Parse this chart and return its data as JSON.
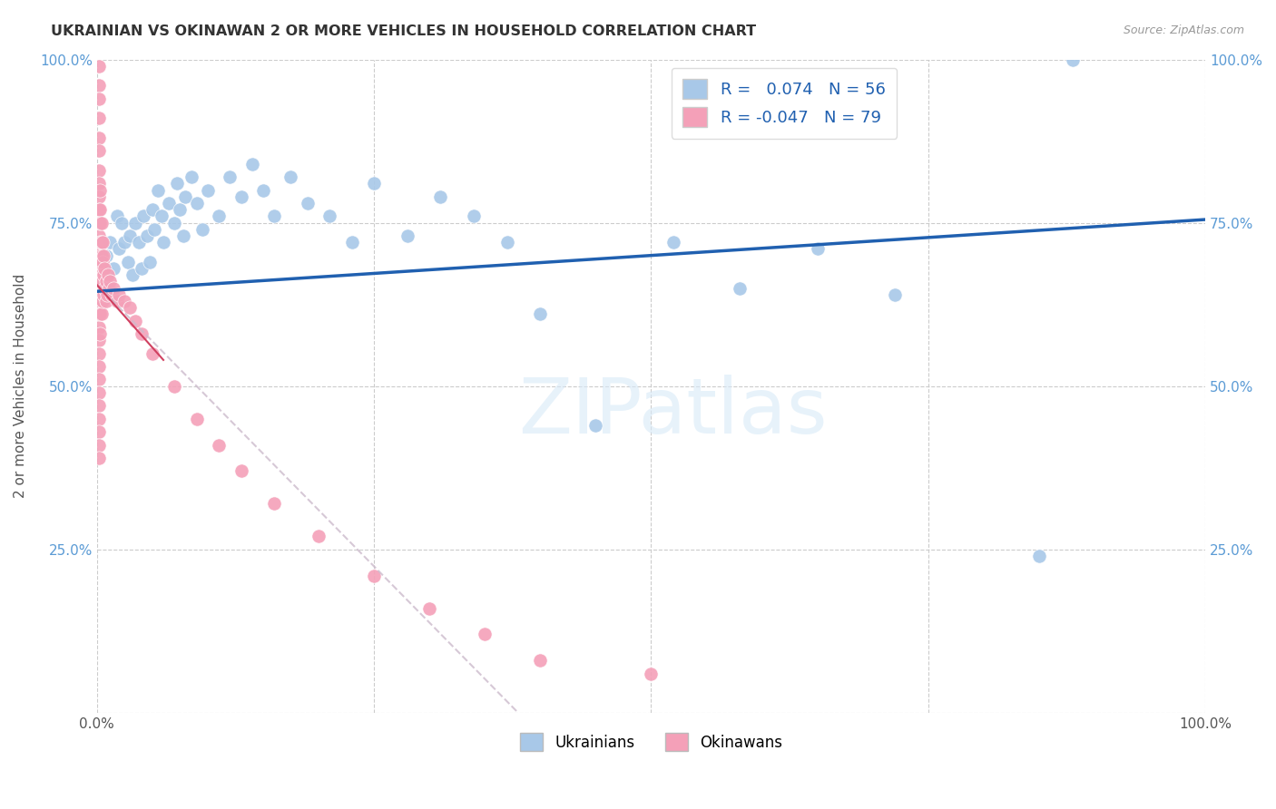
{
  "title": "UKRAINIAN VS OKINAWAN 2 OR MORE VEHICLES IN HOUSEHOLD CORRELATION CHART",
  "source": "Source: ZipAtlas.com",
  "ylabel": "2 or more Vehicles in Household",
  "watermark": "ZIPatlas",
  "legend_labels": [
    "Ukrainians",
    "Okinawans"
  ],
  "r_ukrainian": 0.074,
  "n_ukrainian": 56,
  "r_okinawan": -0.047,
  "n_okinawan": 79,
  "ukrainian_color": "#a8c8e8",
  "okinawan_color": "#f4a0b8",
  "trend_ukrainian_color": "#2060b0",
  "trend_okinawan_color": "#c0b0b8",
  "scatter_size": 120,
  "background_color": "#ffffff",
  "grid_color": "#cccccc",
  "ukrainian_x": [
    0.005,
    0.008,
    0.01,
    0.012,
    0.015,
    0.018,
    0.02,
    0.022,
    0.025,
    0.028,
    0.03,
    0.032,
    0.035,
    0.038,
    0.04,
    0.042,
    0.045,
    0.048,
    0.05,
    0.052,
    0.055,
    0.058,
    0.06,
    0.065,
    0.07,
    0.072,
    0.075,
    0.078,
    0.08,
    0.085,
    0.09,
    0.095,
    0.1,
    0.11,
    0.12,
    0.13,
    0.14,
    0.15,
    0.16,
    0.175,
    0.19,
    0.21,
    0.23,
    0.25,
    0.28,
    0.31,
    0.34,
    0.37,
    0.4,
    0.45,
    0.52,
    0.58,
    0.65,
    0.72,
    0.85,
    0.88
  ],
  "ukrainian_y": [
    0.63,
    0.7,
    0.65,
    0.72,
    0.68,
    0.76,
    0.71,
    0.75,
    0.72,
    0.69,
    0.73,
    0.67,
    0.75,
    0.72,
    0.68,
    0.76,
    0.73,
    0.69,
    0.77,
    0.74,
    0.8,
    0.76,
    0.72,
    0.78,
    0.75,
    0.81,
    0.77,
    0.73,
    0.79,
    0.82,
    0.78,
    0.74,
    0.8,
    0.76,
    0.82,
    0.79,
    0.84,
    0.8,
    0.76,
    0.82,
    0.78,
    0.76,
    0.72,
    0.81,
    0.73,
    0.79,
    0.76,
    0.72,
    0.61,
    0.44,
    0.72,
    0.65,
    0.71,
    0.64,
    0.24,
    1.0
  ],
  "okinawan_x": [
    0.002,
    0.002,
    0.002,
    0.002,
    0.002,
    0.002,
    0.002,
    0.002,
    0.002,
    0.002,
    0.002,
    0.002,
    0.002,
    0.002,
    0.002,
    0.002,
    0.002,
    0.002,
    0.002,
    0.002,
    0.002,
    0.002,
    0.002,
    0.002,
    0.002,
    0.002,
    0.002,
    0.002,
    0.002,
    0.003,
    0.003,
    0.003,
    0.003,
    0.003,
    0.003,
    0.003,
    0.003,
    0.003,
    0.004,
    0.004,
    0.004,
    0.004,
    0.004,
    0.004,
    0.005,
    0.005,
    0.005,
    0.005,
    0.006,
    0.006,
    0.006,
    0.007,
    0.007,
    0.008,
    0.008,
    0.009,
    0.01,
    0.011,
    0.012,
    0.013,
    0.015,
    0.018,
    0.02,
    0.025,
    0.03,
    0.035,
    0.04,
    0.05,
    0.07,
    0.09,
    0.11,
    0.13,
    0.16,
    0.2,
    0.25,
    0.3,
    0.35,
    0.4,
    0.5
  ],
  "okinawan_y": [
    0.99,
    0.96,
    0.94,
    0.91,
    0.88,
    0.86,
    0.83,
    0.81,
    0.79,
    0.77,
    0.75,
    0.73,
    0.71,
    0.69,
    0.67,
    0.65,
    0.63,
    0.61,
    0.59,
    0.57,
    0.55,
    0.53,
    0.51,
    0.49,
    0.47,
    0.45,
    0.43,
    0.41,
    0.39,
    0.8,
    0.77,
    0.75,
    0.72,
    0.69,
    0.66,
    0.64,
    0.61,
    0.58,
    0.75,
    0.72,
    0.7,
    0.67,
    0.64,
    0.61,
    0.72,
    0.69,
    0.66,
    0.63,
    0.7,
    0.67,
    0.64,
    0.68,
    0.65,
    0.66,
    0.63,
    0.64,
    0.67,
    0.65,
    0.66,
    0.64,
    0.65,
    0.63,
    0.64,
    0.63,
    0.62,
    0.6,
    0.58,
    0.55,
    0.5,
    0.45,
    0.41,
    0.37,
    0.32,
    0.27,
    0.21,
    0.16,
    0.12,
    0.08,
    0.06
  ],
  "xlim": [
    0,
    1
  ],
  "ylim": [
    0,
    1
  ],
  "xticks": [
    0,
    0.25,
    0.5,
    0.75,
    1.0
  ],
  "yticks": [
    0,
    0.25,
    0.5,
    0.75,
    1.0
  ],
  "xticklabels_left": "0.0%",
  "xticklabels_right": "100.0%",
  "yticklabels": [
    "25.0%",
    "50.0%",
    "75.0%",
    "100.0%"
  ]
}
